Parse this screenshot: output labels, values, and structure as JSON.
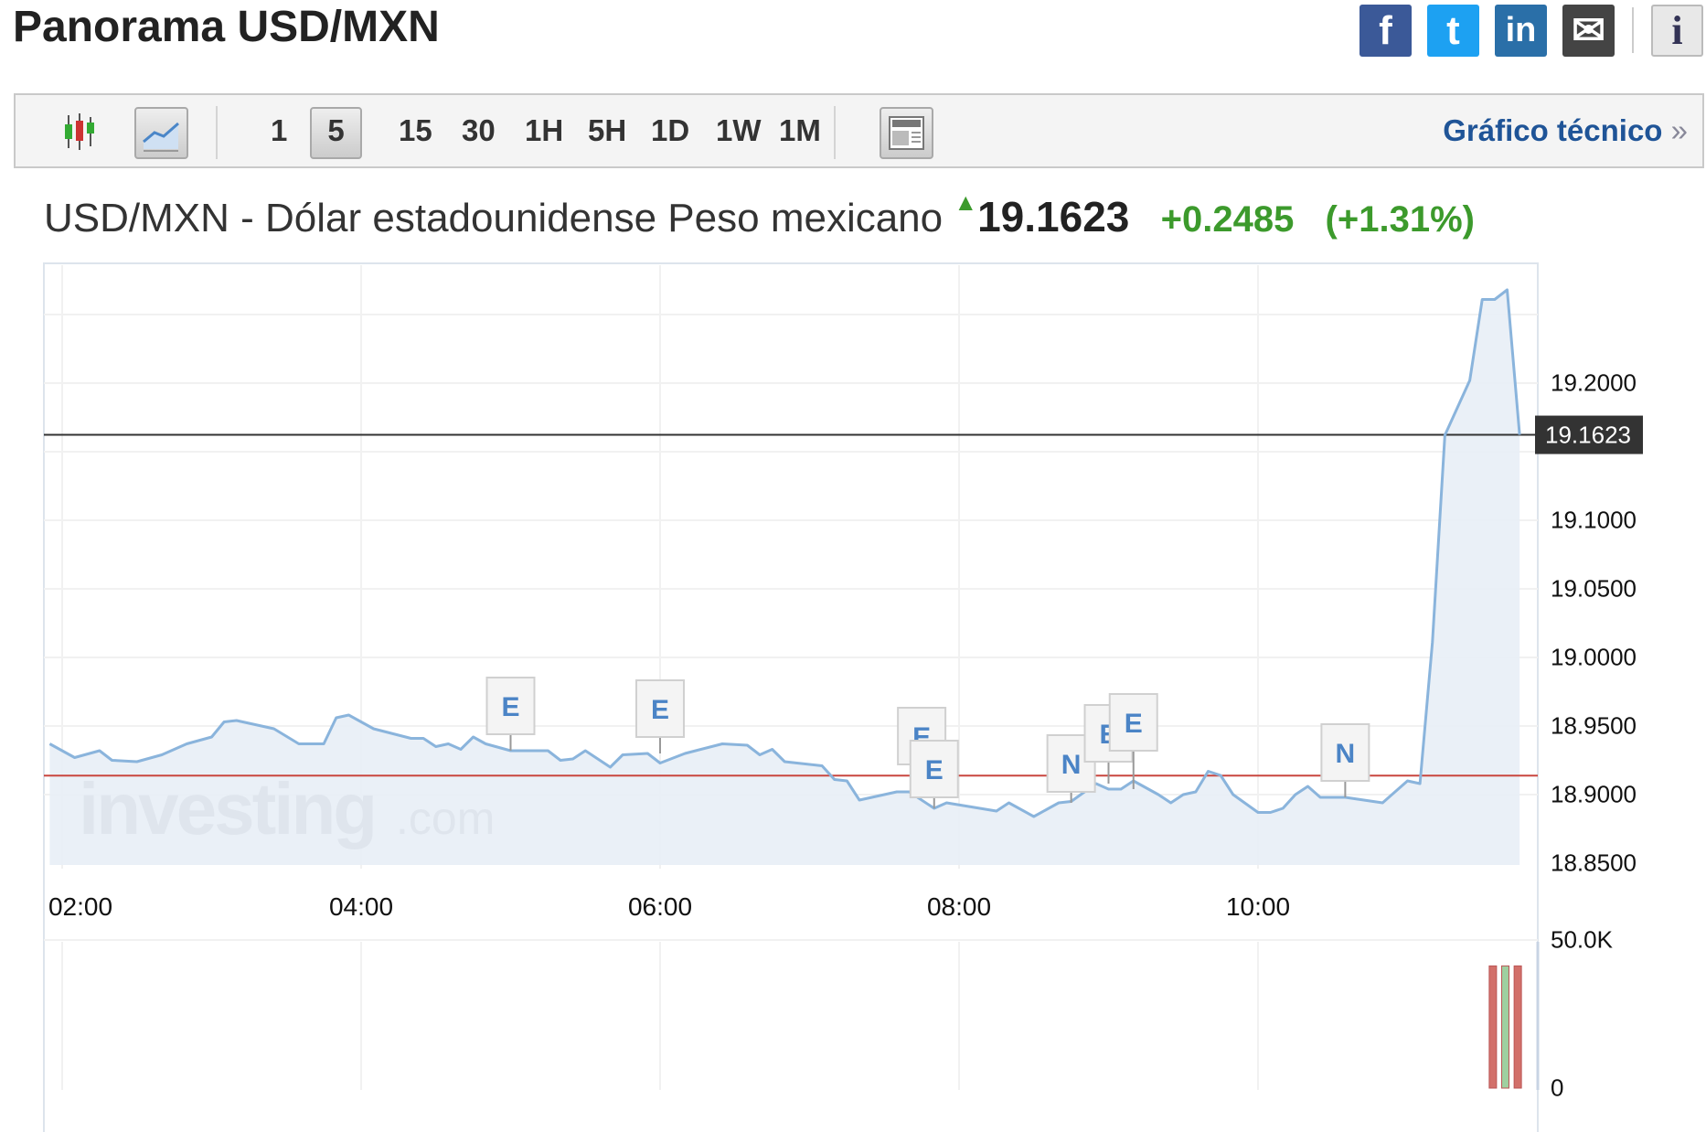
{
  "page_title": "Panorama USD/MXN",
  "social": [
    {
      "name": "facebook",
      "glyph": "f",
      "color": "#3b5998"
    },
    {
      "name": "twitter",
      "glyph": "t",
      "color": "#1da1f2"
    },
    {
      "name": "linkedin",
      "glyph": "in",
      "color": "#2a6fa8"
    },
    {
      "name": "email",
      "glyph": "✉",
      "color": "#444444"
    },
    {
      "name": "info",
      "glyph": "i",
      "color": "#e8e8e8"
    }
  ],
  "toolbar": {
    "chart_types": [
      "candlestick-icon",
      "line-chart-icon"
    ],
    "active_chart_type": "line",
    "timeframes": [
      "1",
      "5",
      "15",
      "30",
      "1H",
      "5H",
      "1D",
      "1W",
      "1M"
    ],
    "active_timeframe": "5",
    "layout_icon": "layout-icon",
    "technical_link": "Gráfico técnico",
    "technical_link_chevron": "»"
  },
  "quote": {
    "name": "USD/MXN - Dólar estadounidense Peso mexicano",
    "direction": "up",
    "price": "19.1623",
    "change": "+0.2485",
    "change_pct": "(+1.31%)",
    "up_color": "#3c9a2c"
  },
  "watermark": {
    "brand": "investing",
    "suffix": ".com"
  },
  "chart_data": {
    "type": "area",
    "x_ticks": [
      "02:00",
      "04:00",
      "06:00",
      "08:00",
      "10:00"
    ],
    "y_ticks": [
      "19.2000",
      "19.1000",
      "19.0500",
      "19.0000",
      "18.9500",
      "18.9000",
      "18.8500"
    ],
    "ylim": [
      18.85,
      19.27
    ],
    "grid": true,
    "last_price_label": "19.1623",
    "previous_close": 18.9138,
    "line_color": "#8ab4dc",
    "fill_color": "#e8eef6",
    "series": [
      [
        "01:55",
        18.937
      ],
      [
        "02:05",
        18.927
      ],
      [
        "02:15",
        18.932
      ],
      [
        "02:20",
        18.925
      ],
      [
        "02:30",
        18.924
      ],
      [
        "02:40",
        18.929
      ],
      [
        "02:50",
        18.937
      ],
      [
        "03:00",
        18.942
      ],
      [
        "03:05",
        18.953
      ],
      [
        "03:10",
        18.954
      ],
      [
        "03:25",
        18.948
      ],
      [
        "03:35",
        18.937
      ],
      [
        "03:45",
        18.937
      ],
      [
        "03:50",
        18.956
      ],
      [
        "03:55",
        18.958
      ],
      [
        "04:05",
        18.948
      ],
      [
        "04:20",
        18.941
      ],
      [
        "04:25",
        18.941
      ],
      [
        "04:30",
        18.935
      ],
      [
        "04:35",
        18.937
      ],
      [
        "04:40",
        18.933
      ],
      [
        "04:45",
        18.942
      ],
      [
        "04:50",
        18.937
      ],
      [
        "05:00",
        18.932
      ],
      [
        "05:15",
        18.932
      ],
      [
        "05:20",
        18.925
      ],
      [
        "05:25",
        18.926
      ],
      [
        "05:30",
        18.932
      ],
      [
        "05:40",
        18.92
      ],
      [
        "05:45",
        18.929
      ],
      [
        "05:55",
        18.93
      ],
      [
        "06:00",
        18.923
      ],
      [
        "06:10",
        18.93
      ],
      [
        "06:25",
        18.937
      ],
      [
        "06:35",
        18.936
      ],
      [
        "06:40",
        18.929
      ],
      [
        "06:45",
        18.933
      ],
      [
        "06:50",
        18.924
      ],
      [
        "07:05",
        18.921
      ],
      [
        "07:10",
        18.911
      ],
      [
        "07:15",
        18.91
      ],
      [
        "07:20",
        18.896
      ],
      [
        "07:35",
        18.902
      ],
      [
        "07:40",
        18.902
      ],
      [
        "07:50",
        18.89
      ],
      [
        "07:55",
        18.894
      ],
      [
        "08:05",
        18.891
      ],
      [
        "08:15",
        18.888
      ],
      [
        "08:20",
        18.894
      ],
      [
        "08:30",
        18.884
      ],
      [
        "08:40",
        18.894
      ],
      [
        "08:45",
        18.895
      ],
      [
        "08:55",
        18.908
      ],
      [
        "09:00",
        18.904
      ],
      [
        "09:05",
        18.904
      ],
      [
        "09:10",
        18.91
      ],
      [
        "09:20",
        18.9
      ],
      [
        "09:25",
        18.894
      ],
      [
        "09:30",
        18.9
      ],
      [
        "09:35",
        18.902
      ],
      [
        "09:40",
        18.917
      ],
      [
        "09:45",
        18.914
      ],
      [
        "09:50",
        18.9
      ],
      [
        "10:00",
        18.887
      ],
      [
        "10:05",
        18.887
      ],
      [
        "10:10",
        18.89
      ],
      [
        "10:15",
        18.9
      ],
      [
        "10:20",
        18.906
      ],
      [
        "10:25",
        18.898
      ],
      [
        "10:35",
        18.898
      ],
      [
        "10:50",
        18.894
      ],
      [
        "10:55",
        18.902
      ],
      [
        "11:00",
        18.91
      ],
      [
        "11:05",
        18.908
      ],
      [
        "11:10",
        19.011
      ],
      [
        "11:15",
        19.162
      ],
      [
        "11:20",
        19.182
      ],
      [
        "11:25",
        19.202
      ],
      [
        "11:30",
        19.261
      ],
      [
        "11:35",
        19.261
      ],
      [
        "11:40",
        19.268
      ],
      [
        "11:45",
        19.1623
      ]
    ],
    "events": [
      {
        "letter": "E",
        "time": "05:00"
      },
      {
        "letter": "E",
        "time": "06:00"
      },
      {
        "letter": "E",
        "time": "07:45"
      },
      {
        "letter": "E",
        "time": "07:50"
      },
      {
        "letter": "N",
        "time": "08:45"
      },
      {
        "letter": "E",
        "time": "09:00"
      },
      {
        "letter": "E",
        "time": "09:10"
      },
      {
        "letter": "N",
        "time": "10:35"
      }
    ],
    "volume": {
      "y_ticks": [
        "50.0K",
        "0"
      ],
      "ylim": [
        0,
        50000
      ],
      "bars": [
        {
          "time": "11:35",
          "value": 41000,
          "color": "#d2706a"
        },
        {
          "time": "11:40",
          "value": 41000,
          "color": "#9fd0a0"
        },
        {
          "time": "11:45",
          "value": 41000,
          "color": "#d2706a"
        }
      ]
    }
  }
}
